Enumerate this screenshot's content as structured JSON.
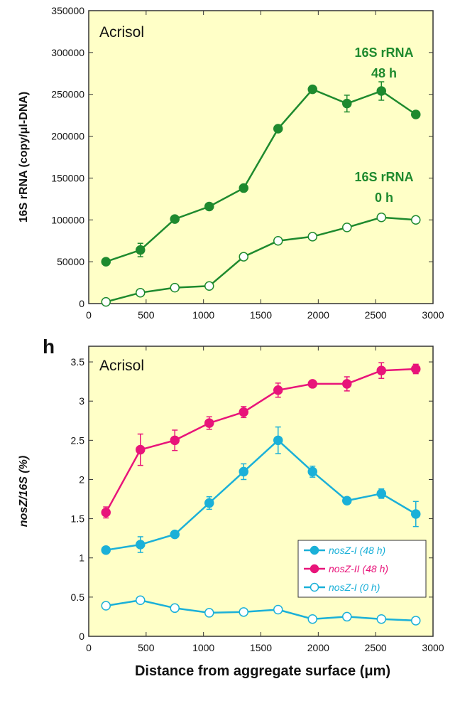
{
  "figure": {
    "xlabel": "Distance from aggregate surface (μm)"
  },
  "chart_data": [
    {
      "type": "line",
      "panel_label": "",
      "annotation": "Acrisol",
      "ylabel": "16S rRNA (copy/μl-DNA)",
      "xlim": [
        0,
        3000
      ],
      "ylim": [
        0,
        350000
      ],
      "xticks": [
        "0",
        "500",
        "1000",
        "1500",
        "2000",
        "2500",
        "3000"
      ],
      "yticks": [
        "0",
        "50000",
        "100000",
        "150000",
        "200000",
        "250000",
        "300000",
        "350000"
      ],
      "grid": false,
      "legend": "none",
      "series": [
        {
          "label_lines": [
            "16S rRNA",
            "48 h"
          ],
          "color": "#1e8a2e",
          "filled": true,
          "x": [
            150,
            450,
            750,
            1050,
            1350,
            1650,
            1950,
            2250,
            2550,
            2850
          ],
          "y": [
            50000,
            64000,
            101000,
            116000,
            138000,
            209000,
            256000,
            239000,
            254000,
            226000
          ],
          "err": [
            0,
            8000,
            0,
            0,
            0,
            0,
            0,
            10000,
            11000,
            0
          ]
        },
        {
          "label_lines": [
            "16S rRNA",
            "0 h"
          ],
          "color": "#1e8a2e",
          "filled": false,
          "x": [
            150,
            450,
            750,
            1050,
            1350,
            1650,
            1950,
            2250,
            2550,
            2850
          ],
          "y": [
            2000,
            13000,
            19000,
            21000,
            56000,
            75000,
            80000,
            91000,
            103000,
            100000
          ],
          "err": [
            0,
            0,
            0,
            0,
            0,
            0,
            0,
            0,
            0,
            0
          ]
        }
      ]
    },
    {
      "type": "line",
      "panel_label": "h",
      "annotation": "Acrisol",
      "ylabel": "nosZ/16S (%)",
      "xlim": [
        0,
        3000
      ],
      "ylim": [
        0,
        3.7
      ],
      "xticks": [
        "0",
        "500",
        "1000",
        "1500",
        "2000",
        "2500",
        "3000"
      ],
      "yticks": [
        "0",
        "0.5",
        "1",
        "1.5",
        "2",
        "2.5",
        "3",
        "3.5"
      ],
      "grid": false,
      "legend": "bottom-right",
      "series": [
        {
          "name": "nosZ-I (48 h)",
          "color": "#1ab0d8",
          "filled": true,
          "x": [
            150,
            450,
            750,
            1050,
            1350,
            1650,
            1950,
            2250,
            2550,
            2850
          ],
          "y": [
            1.1,
            1.17,
            1.3,
            1.7,
            2.1,
            2.5,
            2.1,
            1.73,
            1.82,
            1.56
          ],
          "err": [
            0,
            0.1,
            0,
            0.08,
            0.1,
            0.17,
            0.07,
            0,
            0.06,
            0.16
          ]
        },
        {
          "name": "nosZ-II (48 h)",
          "color": "#e8147a",
          "filled": true,
          "x": [
            150,
            450,
            750,
            1050,
            1350,
            1650,
            1950,
            2250,
            2550,
            2850
          ],
          "y": [
            1.58,
            2.38,
            2.5,
            2.72,
            2.86,
            3.14,
            3.22,
            3.22,
            3.39,
            3.41
          ],
          "err": [
            0.07,
            0.2,
            0.13,
            0.08,
            0.07,
            0.09,
            0,
            0.09,
            0.1,
            0.06
          ]
        },
        {
          "name": "nosZ-I (0 h)",
          "color": "#1ab0d8",
          "filled": false,
          "x": [
            150,
            450,
            750,
            1050,
            1350,
            1650,
            1950,
            2250,
            2550,
            2850
          ],
          "y": [
            0.39,
            0.46,
            0.36,
            0.3,
            0.31,
            0.34,
            0.22,
            0.25,
            0.22,
            0.2
          ],
          "err": [
            0,
            0,
            0,
            0,
            0,
            0,
            0,
            0,
            0,
            0
          ]
        }
      ]
    }
  ]
}
